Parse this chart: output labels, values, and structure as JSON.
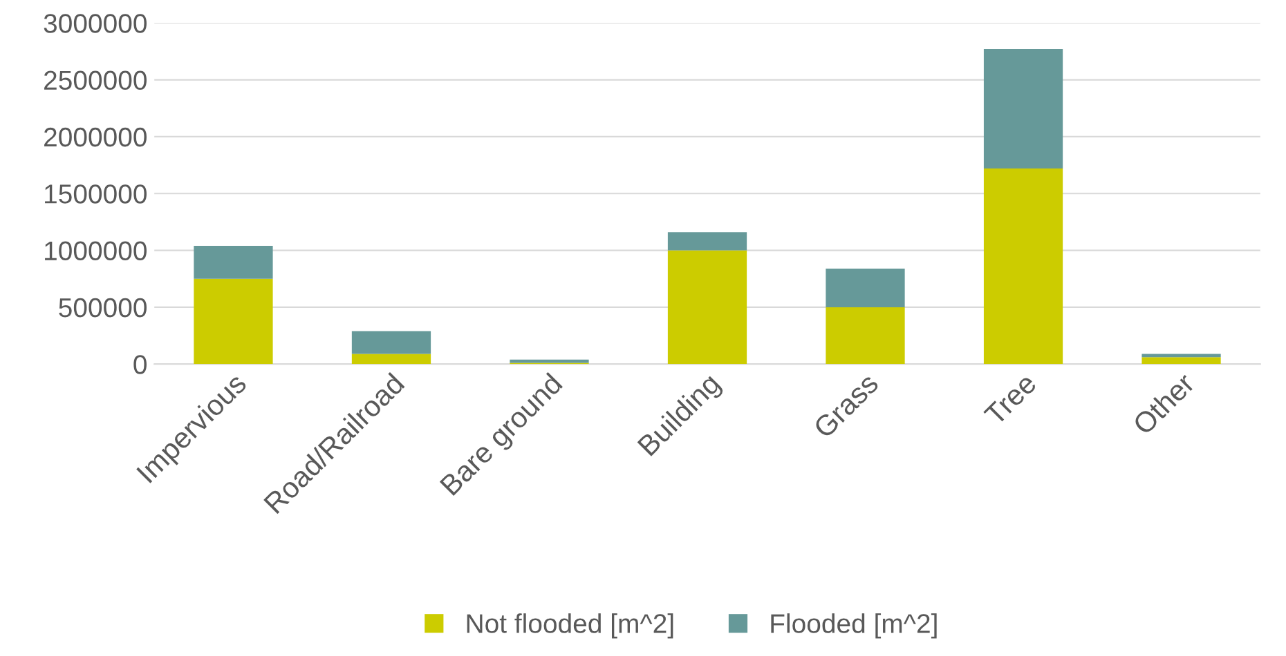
{
  "chart_data": {
    "type": "bar",
    "stacked": true,
    "categories": [
      "Impervious",
      "Road/Railroad",
      "Bare ground",
      "Building",
      "Grass",
      "Tree",
      "Other"
    ],
    "series": [
      {
        "name": "Not flooded [m^2]",
        "color": "#cccc00",
        "values": [
          750000,
          90000,
          10000,
          1000000,
          500000,
          1720000,
          60000
        ]
      },
      {
        "name": "Flooded [m^2]",
        "color": "#669999",
        "values": [
          290000,
          200000,
          30000,
          160000,
          340000,
          1050000,
          30000
        ]
      }
    ],
    "ylim": [
      0,
      3000000
    ],
    "yticks": [
      0,
      500000,
      1000000,
      1500000,
      2000000,
      2500000,
      3000000
    ],
    "grid": "y",
    "legend": "bottom"
  }
}
